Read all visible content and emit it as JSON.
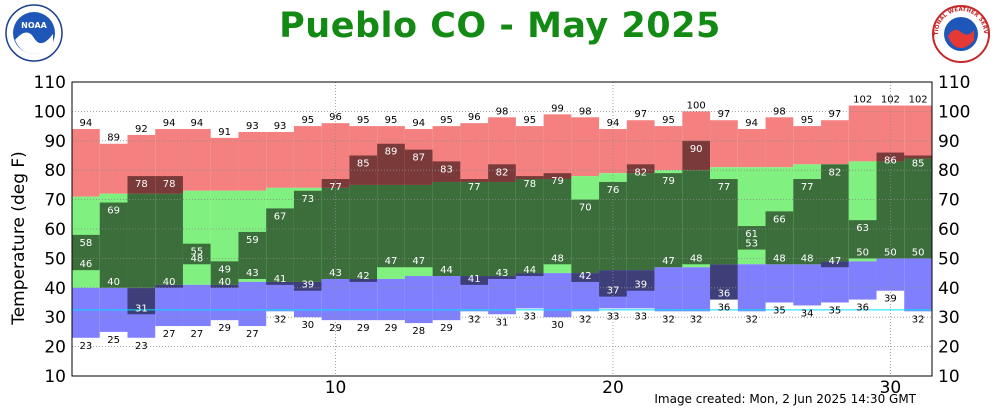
{
  "title": "Pueblo CO - May 2025",
  "credit": "Image created: Mon, 2 Jun 2025 14:30 GMT",
  "logos": {
    "left": {
      "name": "noaa-logo",
      "text": "NOAA"
    },
    "right": {
      "name": "nws-logo",
      "text": "NATIONAL WEATHER SERVICE"
    }
  },
  "colors": {
    "record_range": "#f48080",
    "normal_range": "#80f080",
    "record_low_band": "#8080ff",
    "observed": "#3c6e3c",
    "obs_above_record": "#7a3a3a",
    "obs_below_record": "#3e3e78",
    "grid": "#8c8c8c",
    "low_line": "#00e0ff"
  },
  "chart_data": {
    "type": "bar",
    "title": "Pueblo CO - May 2025",
    "ylabel": "Temperature (deg F)",
    "xlabel": "",
    "ylim": [
      10,
      110
    ],
    "xlim": [
      0.5,
      31.5
    ],
    "y_ticks": [
      10,
      20,
      30,
      40,
      50,
      60,
      70,
      80,
      90,
      100,
      110
    ],
    "x_ticks": [
      10,
      20,
      30
    ],
    "grid": true,
    "days": [
      1,
      2,
      3,
      4,
      5,
      6,
      7,
      8,
      9,
      10,
      11,
      12,
      13,
      14,
      15,
      16,
      17,
      18,
      19,
      20,
      21,
      22,
      23,
      24,
      25,
      26,
      27,
      28,
      29,
      30,
      31
    ],
    "record_high": [
      94,
      89,
      92,
      94,
      94,
      91,
      93,
      93,
      95,
      96,
      95,
      95,
      94,
      95,
      96,
      98,
      95,
      99,
      98,
      94,
      97,
      95,
      100,
      97,
      94,
      98,
      95,
      97,
      102,
      102,
      102
    ],
    "normal_high": [
      71,
      72,
      72,
      72,
      73,
      73,
      73,
      74,
      74,
      74,
      75,
      75,
      75,
      76,
      76,
      76,
      77,
      77,
      78,
      79,
      79,
      80,
      80,
      81,
      81,
      81,
      82,
      82,
      83,
      83,
      84
    ],
    "normal_low": [
      40,
      40,
      40,
      41,
      41,
      41,
      42,
      42,
      42,
      43,
      43,
      43,
      44,
      44,
      44,
      44,
      45,
      45,
      45,
      46,
      46,
      47,
      47,
      48,
      48,
      48,
      48,
      49,
      49,
      50,
      50
    ],
    "record_low": [
      23,
      25,
      23,
      27,
      27,
      29,
      27,
      32,
      30,
      29,
      29,
      29,
      28,
      29,
      32,
      31,
      33,
      30,
      32,
      33,
      33,
      32,
      32,
      36,
      32,
      35,
      34,
      35,
      36,
      39,
      32
    ],
    "observed_high": [
      58,
      69,
      78,
      78,
      55,
      49,
      59,
      67,
      73,
      77,
      85,
      89,
      87,
      83,
      77,
      82,
      78,
      79,
      70,
      76,
      82,
      79,
      90,
      77,
      61,
      66,
      77,
      82,
      63,
      86,
      85
    ],
    "observed_low": [
      46,
      40,
      31,
      40,
      48,
      40,
      43,
      41,
      39,
      43,
      42,
      47,
      47,
      44,
      41,
      43,
      44,
      48,
      42,
      37,
      39,
      47,
      48,
      36,
      53,
      48,
      48,
      47,
      50,
      50,
      50
    ],
    "low_line_value": 32.5
  }
}
